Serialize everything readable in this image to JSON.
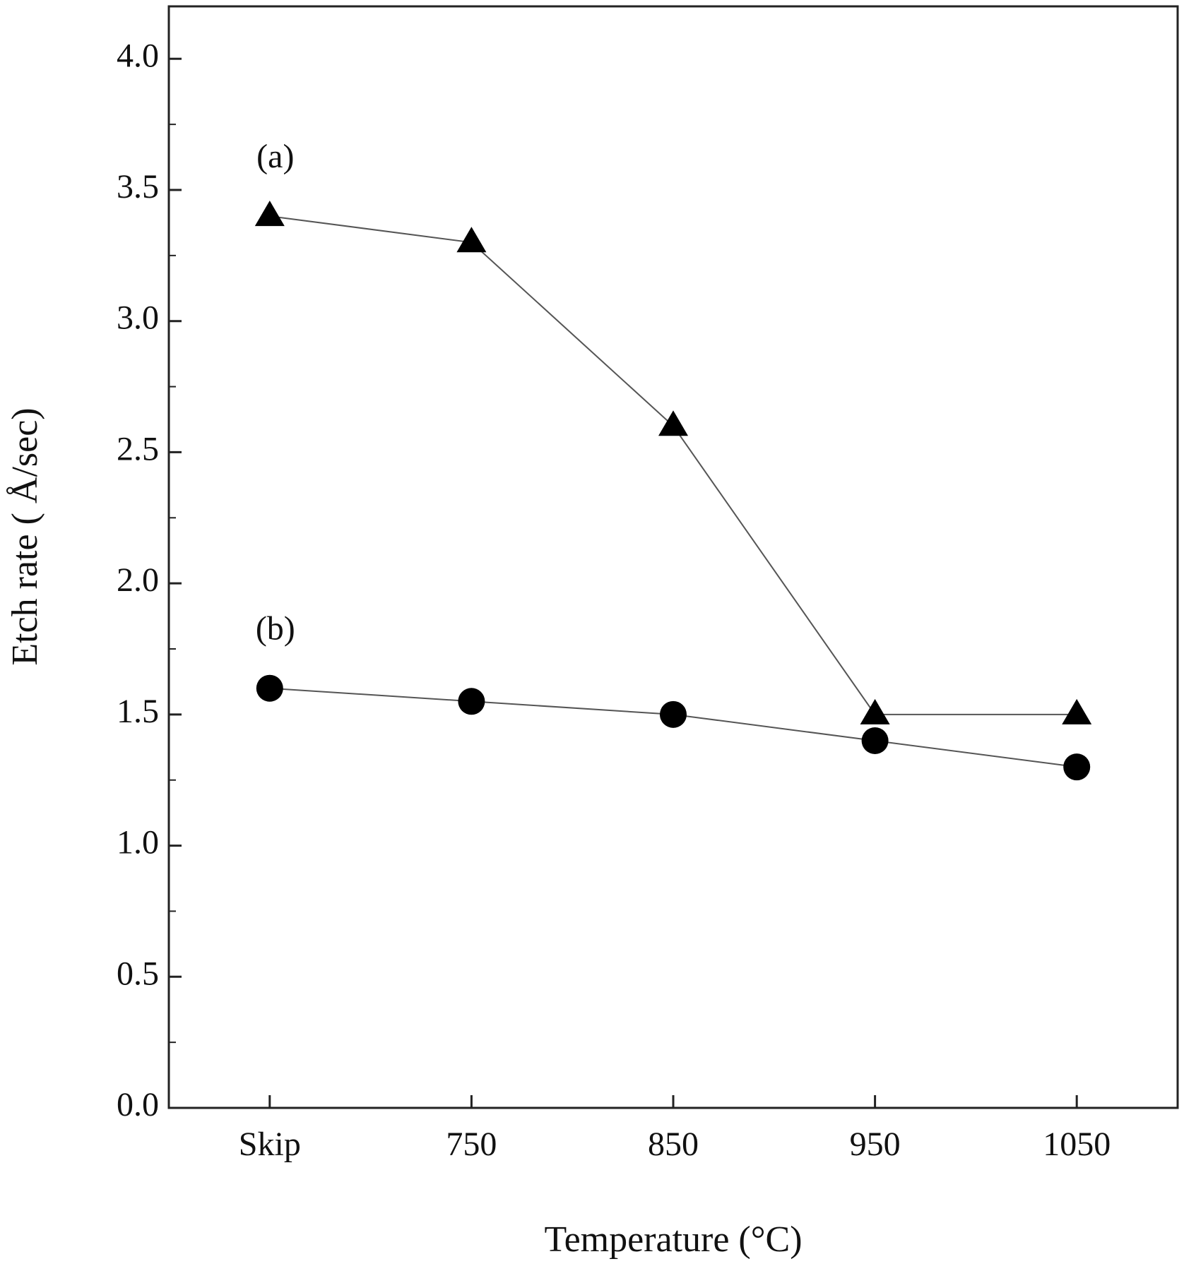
{
  "chart_data": {
    "type": "line",
    "x_label": "Temperature (°C)",
    "y_label": "Etch rate ( Å/sec)",
    "categories": [
      "Skip",
      "750",
      "850",
      "950",
      "1050"
    ],
    "series": [
      {
        "name": "(a)",
        "color": "#000000",
        "marker": "triangle",
        "values": [
          3.4,
          3.3,
          2.6,
          1.5,
          1.5
        ]
      },
      {
        "name": "(b)",
        "color": "#000000",
        "marker": "circle",
        "values": [
          1.6,
          1.55,
          1.5,
          1.4,
          1.3
        ]
      }
    ],
    "ylim": [
      0,
      4.2
    ],
    "yticks": [
      {
        "value": 0,
        "label": "0.0"
      },
      0.5,
      {
        "value": 1,
        "label": "1.0"
      },
      1.5,
      {
        "value": 2,
        "label": "2.0"
      },
      2.5,
      {
        "value": 3,
        "label": "3.0"
      },
      3.5,
      {
        "value": 4,
        "label": "4.0"
      }
    ],
    "minor_yticks": [
      0.25,
      0.75,
      1.25,
      1.75,
      2.25,
      2.75,
      3.25,
      3.75
    ],
    "grid": false
  }
}
